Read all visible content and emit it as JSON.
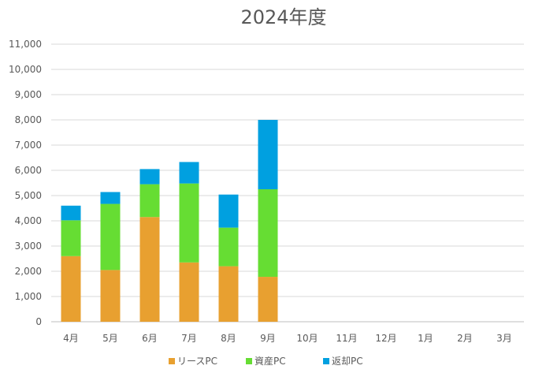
{
  "chart_data": {
    "type": "bar",
    "stacked": true,
    "title": "2024年度",
    "categories": [
      "4月",
      "5月",
      "6月",
      "7月",
      "8月",
      "9月",
      "10月",
      "11月",
      "12月",
      "1月",
      "2月",
      "3月"
    ],
    "series": [
      {
        "name": "リースPC",
        "color": "#E8A030",
        "values": [
          2600,
          2050,
          4150,
          2350,
          2200,
          1780,
          0,
          0,
          0,
          0,
          0,
          0
        ]
      },
      {
        "name": "資産PC",
        "color": "#66DD33",
        "values": [
          1420,
          2620,
          1300,
          3130,
          1530,
          3470,
          0,
          0,
          0,
          0,
          0,
          0
        ]
      },
      {
        "name": "返却PC",
        "color": "#00A0E0",
        "values": [
          580,
          470,
          600,
          850,
          1310,
          2750,
          0,
          0,
          0,
          0,
          0,
          0
        ]
      }
    ],
    "ylim": [
      0,
      11000
    ],
    "yticks": [
      "0",
      "1,000",
      "2,000",
      "3,000",
      "4,000",
      "5,000",
      "6,000",
      "7,000",
      "8,000",
      "9,000",
      "10,000",
      "11,000"
    ],
    "grid": true,
    "legend": "bottom"
  }
}
